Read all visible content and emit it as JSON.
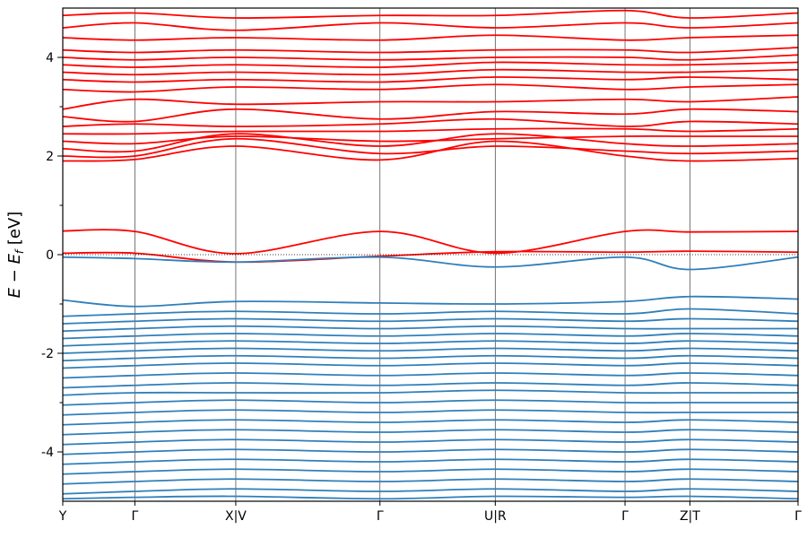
{
  "chart_data": {
    "type": "line",
    "title": "",
    "xlabel": "",
    "ylabel": "E − E_f [eV]",
    "ylabel_main": "E − E",
    "ylabel_sub": "f",
    "ylabel_unit": " [eV]",
    "ylim": [
      -5,
      5
    ],
    "yticks": [
      4,
      2,
      0,
      -2,
      -4
    ],
    "ytick_labels": [
      "4",
      "2",
      "0",
      "-2",
      "-4"
    ],
    "kpath": [
      {
        "label": "Y",
        "x": 0
      },
      {
        "label": "Γ",
        "x": 0.5
      },
      {
        "label": "X|V",
        "x": 1.2
      },
      {
        "label": "Γ",
        "x": 2.2
      },
      {
        "label": "U|R",
        "x": 3.0
      },
      {
        "label": "Γ",
        "x": 3.9
      },
      {
        "label": "Z|T",
        "x": 4.35
      },
      {
        "label": "Γ",
        "x": 5.1
      }
    ],
    "fermi_level": 0,
    "grid": false,
    "legend": "none",
    "series": [
      {
        "band": "conduction",
        "color": "#ff0000",
        "bands": [
          {
            "x": [
              0,
              0.5,
              1.2,
              2.2,
              3.0,
              3.9,
              4.35,
              5.1
            ],
            "y": [
              0.48,
              0.47,
              0.02,
              0.47,
              0.03,
              0.47,
              0.46,
              0.47
            ]
          },
          {
            "x": [
              0,
              0.5,
              1.2,
              2.2,
              3.0,
              3.9,
              4.35,
              5.1
            ],
            "y": [
              0.03,
              0.03,
              -0.15,
              -0.03,
              0.06,
              0.05,
              0.07,
              0.05
            ]
          },
          {
            "x": [
              0,
              0.5,
              1.2,
              2.2,
              3.0,
              3.9,
              4.35,
              5.1
            ],
            "y": [
              1.9,
              1.93,
              2.2,
              1.92,
              2.3,
              2.0,
              1.9,
              1.95
            ]
          },
          {
            "x": [
              0,
              0.5,
              1.2,
              2.2,
              3.0,
              3.9,
              4.35,
              5.1
            ],
            "y": [
              2.0,
              2.0,
              2.35,
              2.05,
              2.2,
              2.1,
              2.05,
              2.1
            ]
          },
          {
            "x": [
              0,
              0.5,
              1.2,
              2.2,
              3.0,
              3.9,
              4.35,
              5.1
            ],
            "y": [
              2.15,
              2.1,
              2.45,
              2.2,
              2.45,
              2.25,
              2.2,
              2.25
            ]
          },
          {
            "x": [
              0,
              0.5,
              1.2,
              2.2,
              3.0,
              3.9,
              4.35,
              5.1
            ],
            "y": [
              2.3,
              2.25,
              2.4,
              2.3,
              2.35,
              2.4,
              2.4,
              2.4
            ]
          },
          {
            "x": [
              0,
              0.5,
              1.2,
              2.2,
              3.0,
              3.9,
              4.35,
              5.1
            ],
            "y": [
              2.45,
              2.45,
              2.5,
              2.5,
              2.55,
              2.55,
              2.5,
              2.55
            ]
          },
          {
            "x": [
              0,
              0.5,
              1.2,
              2.2,
              3.0,
              3.9,
              4.35,
              5.1
            ],
            "y": [
              2.6,
              2.65,
              2.6,
              2.65,
              2.75,
              2.6,
              2.7,
              2.65
            ]
          },
          {
            "x": [
              0,
              0.5,
              1.2,
              2.2,
              3.0,
              3.9,
              4.35,
              5.1
            ],
            "y": [
              2.8,
              2.7,
              2.95,
              2.75,
              2.9,
              2.85,
              2.95,
              2.9
            ]
          },
          {
            "x": [
              0,
              0.5,
              1.2,
              2.2,
              3.0,
              3.9,
              4.35,
              5.1
            ],
            "y": [
              2.95,
              3.15,
              3.05,
              3.1,
              3.1,
              3.15,
              3.1,
              3.2
            ]
          },
          {
            "x": [
              0,
              0.5,
              1.2,
              2.2,
              3.0,
              3.9,
              4.35,
              5.1
            ],
            "y": [
              3.35,
              3.3,
              3.4,
              3.35,
              3.45,
              3.35,
              3.4,
              3.45
            ]
          },
          {
            "x": [
              0,
              0.5,
              1.2,
              2.2,
              3.0,
              3.9,
              4.35,
              5.1
            ],
            "y": [
              3.55,
              3.5,
              3.55,
              3.5,
              3.6,
              3.55,
              3.6,
              3.55
            ]
          },
          {
            "x": [
              0,
              0.5,
              1.2,
              2.2,
              3.0,
              3.9,
              4.35,
              5.1
            ],
            "y": [
              3.7,
              3.65,
              3.7,
              3.65,
              3.75,
              3.7,
              3.7,
              3.75
            ]
          },
          {
            "x": [
              0,
              0.5,
              1.2,
              2.2,
              3.0,
              3.9,
              4.35,
              5.1
            ],
            "y": [
              3.85,
              3.8,
              3.85,
              3.8,
              3.9,
              3.85,
              3.85,
              3.9
            ]
          },
          {
            "x": [
              0,
              0.5,
              1.2,
              2.2,
              3.0,
              3.9,
              4.35,
              5.1
            ],
            "y": [
              4.0,
              3.95,
              4.0,
              3.95,
              4.0,
              4.0,
              3.95,
              4.05
            ]
          },
          {
            "x": [
              0,
              0.5,
              1.2,
              2.2,
              3.0,
              3.9,
              4.35,
              5.1
            ],
            "y": [
              4.15,
              4.1,
              4.15,
              4.1,
              4.15,
              4.15,
              4.1,
              4.2
            ]
          },
          {
            "x": [
              0,
              0.5,
              1.2,
              2.2,
              3.0,
              3.9,
              4.35,
              5.1
            ],
            "y": [
              4.4,
              4.35,
              4.4,
              4.35,
              4.45,
              4.35,
              4.4,
              4.45
            ]
          },
          {
            "x": [
              0,
              0.5,
              1.2,
              2.2,
              3.0,
              3.9,
              4.35,
              5.1
            ],
            "y": [
              4.6,
              4.7,
              4.55,
              4.7,
              4.6,
              4.7,
              4.6,
              4.7
            ]
          },
          {
            "x": [
              0,
              0.5,
              1.2,
              2.2,
              3.0,
              3.9,
              4.35,
              5.1
            ],
            "y": [
              4.85,
              4.9,
              4.8,
              4.85,
              4.85,
              4.95,
              4.8,
              4.9
            ]
          }
        ]
      },
      {
        "band": "valence",
        "color": "#2f7fba",
        "bands": [
          {
            "x": [
              0,
              0.5,
              1.2,
              2.2,
              3.0,
              3.9,
              4.35,
              5.1
            ],
            "y": [
              -0.05,
              -0.08,
              -0.15,
              -0.05,
              -0.25,
              -0.05,
              -0.3,
              -0.05
            ]
          },
          {
            "x": [
              0,
              0.5,
              1.2,
              2.2,
              3.0,
              3.9,
              4.35,
              5.1
            ],
            "y": [
              -0.92,
              -1.05,
              -0.95,
              -0.98,
              -1.0,
              -0.95,
              -0.85,
              -0.9
            ]
          },
          {
            "x": [
              0,
              0.5,
              1.2,
              2.2,
              3.0,
              3.9,
              4.35,
              5.1
            ],
            "y": [
              -1.25,
              -1.2,
              -1.15,
              -1.2,
              -1.15,
              -1.2,
              -1.1,
              -1.2
            ]
          },
          {
            "x": [
              0,
              0.5,
              1.2,
              2.2,
              3.0,
              3.9,
              4.35,
              5.1
            ],
            "y": [
              -1.4,
              -1.35,
              -1.3,
              -1.35,
              -1.3,
              -1.35,
              -1.3,
              -1.35
            ]
          },
          {
            "x": [
              0,
              0.5,
              1.2,
              2.2,
              3.0,
              3.9,
              4.35,
              5.1
            ],
            "y": [
              -1.55,
              -1.5,
              -1.45,
              -1.5,
              -1.45,
              -1.5,
              -1.5,
              -1.5
            ]
          },
          {
            "x": [
              0,
              0.5,
              1.2,
              2.2,
              3.0,
              3.9,
              4.35,
              5.1
            ],
            "y": [
              -1.7,
              -1.65,
              -1.6,
              -1.65,
              -1.6,
              -1.65,
              -1.6,
              -1.65
            ]
          },
          {
            "x": [
              0,
              0.5,
              1.2,
              2.2,
              3.0,
              3.9,
              4.35,
              5.1
            ],
            "y": [
              -1.85,
              -1.8,
              -1.75,
              -1.8,
              -1.75,
              -1.8,
              -1.75,
              -1.8
            ]
          },
          {
            "x": [
              0,
              0.5,
              1.2,
              2.2,
              3.0,
              3.9,
              4.35,
              5.1
            ],
            "y": [
              -2.0,
              -1.95,
              -1.9,
              -1.95,
              -1.9,
              -1.95,
              -1.9,
              -1.95
            ]
          },
          {
            "x": [
              0,
              0.5,
              1.2,
              2.2,
              3.0,
              3.9,
              4.35,
              5.1
            ],
            "y": [
              -2.15,
              -2.1,
              -2.05,
              -2.1,
              -2.05,
              -2.1,
              -2.05,
              -2.1
            ]
          },
          {
            "x": [
              0,
              0.5,
              1.2,
              2.2,
              3.0,
              3.9,
              4.35,
              5.1
            ],
            "y": [
              -2.3,
              -2.25,
              -2.2,
              -2.25,
              -2.2,
              -2.25,
              -2.2,
              -2.25
            ]
          },
          {
            "x": [
              0,
              0.5,
              1.2,
              2.2,
              3.0,
              3.9,
              4.35,
              5.1
            ],
            "y": [
              -2.5,
              -2.45,
              -2.4,
              -2.45,
              -2.4,
              -2.45,
              -2.4,
              -2.45
            ]
          },
          {
            "x": [
              0,
              0.5,
              1.2,
              2.2,
              3.0,
              3.9,
              4.35,
              5.1
            ],
            "y": [
              -2.7,
              -2.65,
              -2.6,
              -2.65,
              -2.6,
              -2.65,
              -2.6,
              -2.65
            ]
          },
          {
            "x": [
              0,
              0.5,
              1.2,
              2.2,
              3.0,
              3.9,
              4.35,
              5.1
            ],
            "y": [
              -2.85,
              -2.8,
              -2.8,
              -2.8,
              -2.75,
              -2.8,
              -2.8,
              -2.8
            ]
          },
          {
            "x": [
              0,
              0.5,
              1.2,
              2.2,
              3.0,
              3.9,
              4.35,
              5.1
            ],
            "y": [
              -3.05,
              -3.0,
              -2.95,
              -3.0,
              -2.95,
              -3.0,
              -3.0,
              -3.0
            ]
          },
          {
            "x": [
              0,
              0.5,
              1.2,
              2.2,
              3.0,
              3.9,
              4.35,
              5.1
            ],
            "y": [
              -3.25,
              -3.2,
              -3.15,
              -3.2,
              -3.15,
              -3.2,
              -3.2,
              -3.2
            ]
          },
          {
            "x": [
              0,
              0.5,
              1.2,
              2.2,
              3.0,
              3.9,
              4.35,
              5.1
            ],
            "y": [
              -3.45,
              -3.4,
              -3.35,
              -3.4,
              -3.35,
              -3.4,
              -3.35,
              -3.4
            ]
          },
          {
            "x": [
              0,
              0.5,
              1.2,
              2.2,
              3.0,
              3.9,
              4.35,
              5.1
            ],
            "y": [
              -3.65,
              -3.6,
              -3.55,
              -3.6,
              -3.55,
              -3.6,
              -3.55,
              -3.6
            ]
          },
          {
            "x": [
              0,
              0.5,
              1.2,
              2.2,
              3.0,
              3.9,
              4.35,
              5.1
            ],
            "y": [
              -3.85,
              -3.8,
              -3.75,
              -3.8,
              -3.75,
              -3.8,
              -3.75,
              -3.8
            ]
          },
          {
            "x": [
              0,
              0.5,
              1.2,
              2.2,
              3.0,
              3.9,
              4.35,
              5.1
            ],
            "y": [
              -4.05,
              -4.0,
              -3.95,
              -4.0,
              -3.95,
              -4.0,
              -3.95,
              -4.0
            ]
          },
          {
            "x": [
              0,
              0.5,
              1.2,
              2.2,
              3.0,
              3.9,
              4.35,
              5.1
            ],
            "y": [
              -4.25,
              -4.2,
              -4.15,
              -4.2,
              -4.15,
              -4.2,
              -4.15,
              -4.2
            ]
          },
          {
            "x": [
              0,
              0.5,
              1.2,
              2.2,
              3.0,
              3.9,
              4.35,
              5.1
            ],
            "y": [
              -4.45,
              -4.4,
              -4.35,
              -4.4,
              -4.35,
              -4.4,
              -4.35,
              -4.4
            ]
          },
          {
            "x": [
              0,
              0.5,
              1.2,
              2.2,
              3.0,
              3.9,
              4.35,
              5.1
            ],
            "y": [
              -4.65,
              -4.6,
              -4.55,
              -4.6,
              -4.55,
              -4.6,
              -4.55,
              -4.6
            ]
          },
          {
            "x": [
              0,
              0.5,
              1.2,
              2.2,
              3.0,
              3.9,
              4.35,
              5.1
            ],
            "y": [
              -4.85,
              -4.8,
              -4.75,
              -4.8,
              -4.75,
              -4.8,
              -4.75,
              -4.8
            ]
          },
          {
            "x": [
              0,
              0.5,
              1.2,
              2.2,
              3.0,
              3.9,
              4.35,
              5.1
            ],
            "y": [
              -4.95,
              -4.92,
              -4.9,
              -4.95,
              -4.9,
              -4.92,
              -4.9,
              -4.95
            ]
          }
        ]
      }
    ]
  }
}
